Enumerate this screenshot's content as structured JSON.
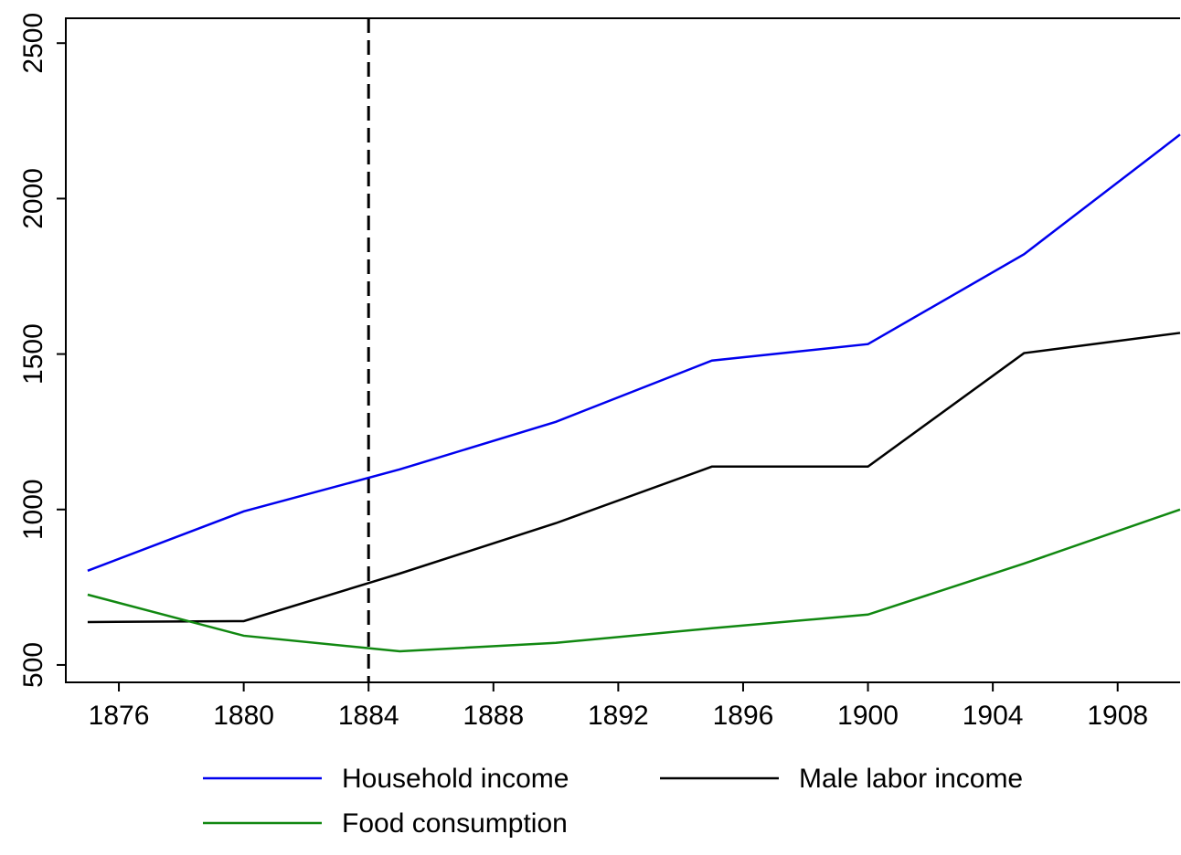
{
  "chart_data": {
    "type": "line",
    "x": [
      1875,
      1880,
      1885,
      1890,
      1895,
      1900,
      1905,
      1910
    ],
    "series": [
      {
        "name": "Household income",
        "color": "#0000ee",
        "values": [
          803,
          994,
          1129,
          1282,
          1479,
          1532,
          1821,
          2206
        ]
      },
      {
        "name": "Male labor income",
        "color": "#000000",
        "values": [
          638,
          641,
          794,
          956,
          1138,
          1138,
          1503,
          1568
        ]
      },
      {
        "name": "Food consumption",
        "color": "#118811",
        "values": [
          726,
          594,
          544,
          571,
          618,
          662,
          826,
          1000
        ]
      }
    ],
    "xlim": [
      1874.3,
      1910
    ],
    "xticks": [
      1876,
      1880,
      1884,
      1888,
      1892,
      1896,
      1900,
      1904,
      1908
    ],
    "ylim": [
      444,
      2580
    ],
    "yticks": [
      500,
      1000,
      1500,
      2000,
      2500
    ],
    "vline": 1884,
    "legend": "bottom"
  }
}
